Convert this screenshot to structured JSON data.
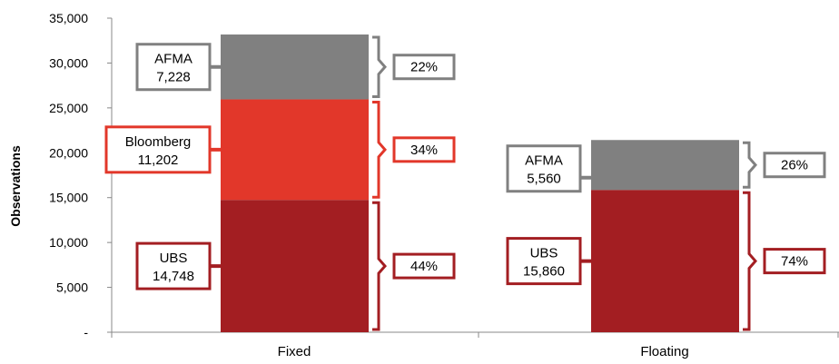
{
  "chart_data": {
    "type": "bar",
    "stacked": true,
    "categories": [
      "Fixed",
      "Floating"
    ],
    "ylabel": "Observations",
    "ylim": [
      0,
      35000
    ],
    "yticks": [
      0,
      5000,
      10000,
      15000,
      20000,
      25000,
      30000,
      35000
    ],
    "ytick_labels": [
      "-",
      "5,000",
      "10,000",
      "15,000",
      "20,000",
      "25,000",
      "30,000",
      "35,000"
    ],
    "grid": false,
    "legend": "none",
    "series": [
      {
        "name": "UBS",
        "values": [
          14748,
          15860
        ],
        "value_labels": [
          "14,748",
          "15,860"
        ],
        "shares": [
          "44%",
          "74%"
        ],
        "color": "#a31e22"
      },
      {
        "name": "Bloomberg",
        "values": [
          11202,
          0
        ],
        "value_labels": [
          "11,202",
          ""
        ],
        "shares": [
          "34%",
          ""
        ],
        "color": "#e2372a"
      },
      {
        "name": "AFMA",
        "values": [
          7228,
          5560
        ],
        "value_labels": [
          "7,228",
          "5,560"
        ],
        "shares": [
          "22%",
          "26%"
        ],
        "color": "#808080"
      }
    ]
  }
}
